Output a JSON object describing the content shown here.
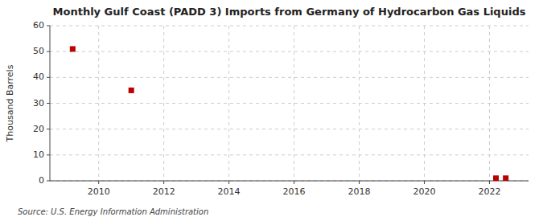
{
  "chart_data": {
    "type": "scatter",
    "title": "Monthly Gulf Coast (PADD 3) Imports from Germany of Hydrocarbon Gas Liquids",
    "ylabel": "Thousand Barrels",
    "source": "Source: U.S. Energy Information Administration",
    "x": [
      2009.2,
      2011.0,
      2022.2,
      2022.5
    ],
    "values": [
      51,
      35,
      1,
      1
    ],
    "color": "#bb0000",
    "marker": "square",
    "xlim": [
      2008.5,
      2023.2
    ],
    "ylim": [
      0,
      60
    ],
    "xticks": [
      2010,
      2012,
      2014,
      2016,
      2018,
      2020,
      2022
    ],
    "yticks": [
      0,
      10,
      20,
      30,
      40,
      50,
      60
    ],
    "grid": true
  }
}
